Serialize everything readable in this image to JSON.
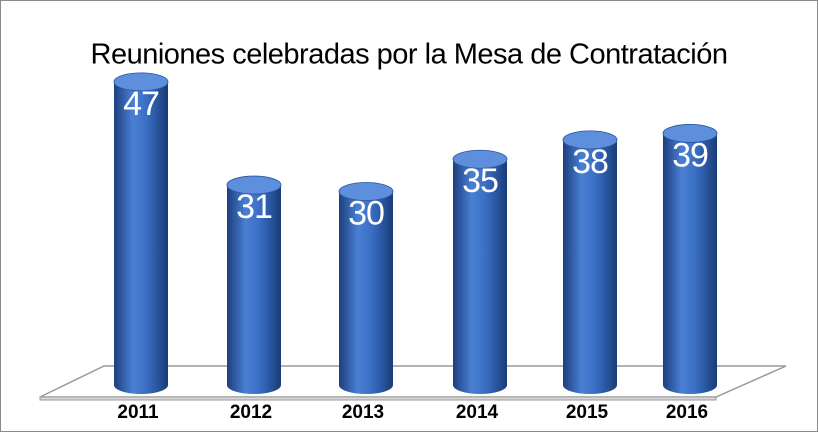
{
  "chart_data": {
    "type": "bar",
    "title": "Reuniones celebradas por la Mesa de Contratación",
    "categories": [
      "2011",
      "2012",
      "2013",
      "2014",
      "2015",
      "2016"
    ],
    "values": [
      47,
      31,
      30,
      35,
      38,
      39
    ],
    "color": "#3a6fc4"
  }
}
